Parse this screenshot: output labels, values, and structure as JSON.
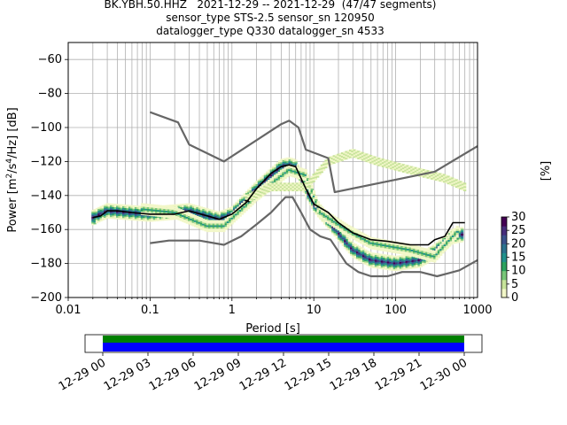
{
  "title_lines": [
    "BK.YBH.50.HHZ   2021-12-29 -- 2021-12-29  (47/47 segments)",
    "sensor_type STS-2.5 sensor_sn 120950",
    "datalogger_type Q330 datalogger_sn 4533"
  ],
  "chart_data": {
    "type": "heatmap",
    "title": "BK.YBH.50.HHZ   2021-12-29 -- 2021-12-29  (47/47 segments)",
    "xlabel": "Period [s]",
    "ylabel": "Power [m²/s⁴/Hz] [dB]",
    "ylabel_parts": [
      "Power [m",
      "2",
      "/s",
      "4",
      "/Hz] [dB]"
    ],
    "xscale": "log",
    "xlim": [
      0.01,
      1000
    ],
    "ylim": [
      -200,
      -50
    ],
    "xticks": [
      0.01,
      0.1,
      1,
      10,
      100,
      1000
    ],
    "xtick_labels": [
      "0.01",
      "0.1",
      "1",
      "10",
      "100",
      "1000"
    ],
    "yticks": [
      -200,
      -180,
      -160,
      -140,
      -120,
      -100,
      -80,
      -60
    ],
    "ytick_labels": [
      "−200",
      "−180",
      "−160",
      "−140",
      "−120",
      "−100",
      "−80",
      "−60"
    ],
    "grid": true,
    "colorbar": {
      "label": "[%]",
      "min": 0,
      "max": 30,
      "ticks": [
        0,
        5,
        10,
        15,
        20,
        25,
        30
      ],
      "tick_labels": [
        "0",
        "5",
        "10",
        "15",
        "20",
        "25",
        "30"
      ],
      "colors": [
        "#f2f7c8",
        "#c7e39a",
        "#78c679",
        "#2ca25f",
        "#21918c",
        "#2c728e",
        "#3b528b",
        "#472d7b",
        "#440154"
      ]
    },
    "series": [
      {
        "kind": "noise_model_high",
        "color": "#666666",
        "points": [
          [
            0.1,
            -91
          ],
          [
            0.22,
            -97
          ],
          [
            0.3,
            -110
          ],
          [
            0.8,
            -120
          ],
          [
            4,
            -98
          ],
          [
            5,
            -96
          ],
          [
            6.5,
            -100
          ],
          [
            8,
            -113
          ],
          [
            15,
            -118
          ],
          [
            18,
            -138
          ],
          [
            300,
            -126
          ],
          [
            1000,
            -111
          ]
        ]
      },
      {
        "kind": "noise_model_low",
        "color": "#666666",
        "points": [
          [
            0.1,
            -168
          ],
          [
            0.17,
            -166.5
          ],
          [
            0.4,
            -166.5
          ],
          [
            0.8,
            -169
          ],
          [
            1.3,
            -164
          ],
          [
            2,
            -157
          ],
          [
            3,
            -150
          ],
          [
            4.5,
            -141
          ],
          [
            5.5,
            -141
          ],
          [
            7,
            -150
          ],
          [
            9,
            -160
          ],
          [
            12,
            -164
          ],
          [
            16,
            -166
          ],
          [
            25,
            -180
          ],
          [
            35,
            -185
          ],
          [
            50,
            -187.5
          ],
          [
            80,
            -187.5
          ],
          [
            120,
            -185
          ],
          [
            200,
            -185
          ],
          [
            320,
            -187.5
          ],
          [
            600,
            -184
          ],
          [
            1000,
            -178
          ]
        ]
      },
      {
        "kind": "mode",
        "color": "#000000",
        "points": [
          [
            0.02,
            -153
          ],
          [
            0.025,
            -152
          ],
          [
            0.03,
            -149
          ],
          [
            0.04,
            -149
          ],
          [
            0.06,
            -150
          ],
          [
            0.1,
            -151
          ],
          [
            0.2,
            -151
          ],
          [
            0.3,
            -149
          ],
          [
            0.5,
            -152
          ],
          [
            0.7,
            -154
          ],
          [
            1,
            -151
          ],
          [
            1.5,
            -144
          ],
          [
            2,
            -136
          ],
          [
            3,
            -127
          ],
          [
            4,
            -123
          ],
          [
            5,
            -122
          ],
          [
            6,
            -123
          ],
          [
            8,
            -136
          ],
          [
            10,
            -145
          ],
          [
            15,
            -150
          ],
          [
            20,
            -156
          ],
          [
            30,
            -162
          ],
          [
            50,
            -166
          ],
          [
            80,
            -167
          ],
          [
            150,
            -169
          ],
          [
            250,
            -169
          ],
          [
            300,
            -166
          ],
          [
            400,
            -164
          ],
          [
            500,
            -156
          ],
          [
            700,
            -156
          ]
        ]
      }
    ],
    "density_bands": [
      {
        "name": "main",
        "points": [
          [
            0.02,
            -153
          ],
          [
            0.03,
            -149
          ],
          [
            0.1,
            -151
          ],
          [
            0.3,
            -149
          ],
          [
            0.7,
            -154
          ],
          [
            1,
            -151
          ],
          [
            2,
            -136
          ],
          [
            4,
            -123
          ],
          [
            5,
            -122
          ],
          [
            6,
            -123
          ],
          [
            8,
            -136
          ],
          [
            10,
            -145
          ],
          [
            20,
            -162
          ],
          [
            30,
            -172
          ],
          [
            50,
            -178
          ],
          [
            100,
            -180
          ],
          [
            200,
            -178
          ],
          [
            300,
            -173
          ],
          [
            500,
            -164
          ],
          [
            650,
            -163
          ]
        ]
      },
      {
        "name": "secondary",
        "points": [
          [
            0.08,
            -148
          ],
          [
            0.2,
            -150
          ],
          [
            0.5,
            -158
          ],
          [
            0.8,
            -158
          ],
          [
            2,
            -140
          ],
          [
            5,
            -125
          ],
          [
            8,
            -128
          ],
          [
            12,
            -150
          ],
          [
            25,
            -160
          ],
          [
            50,
            -168
          ],
          [
            150,
            -172
          ],
          [
            300,
            -176
          ],
          [
            600,
            -160
          ]
        ]
      },
      {
        "name": "faint-upper",
        "points": [
          [
            1.5,
            -142
          ],
          [
            3,
            -135
          ],
          [
            8,
            -135
          ],
          [
            15,
            -120
          ],
          [
            30,
            -115
          ],
          [
            60,
            -120
          ],
          [
            150,
            -125
          ],
          [
            400,
            -130
          ],
          [
            700,
            -135
          ]
        ]
      }
    ],
    "time_axis": {
      "tick_labels": [
        "12-29 00",
        "12-29 03",
        "12-29 06",
        "12-29 09",
        "12-29 12",
        "12-29 15",
        "12-29 18",
        "12-29 21",
        "12-30 00"
      ],
      "coverage": [
        {
          "name": "data",
          "color": "#008000"
        },
        {
          "name": "gaps",
          "color": "#0000ff"
        }
      ]
    }
  }
}
